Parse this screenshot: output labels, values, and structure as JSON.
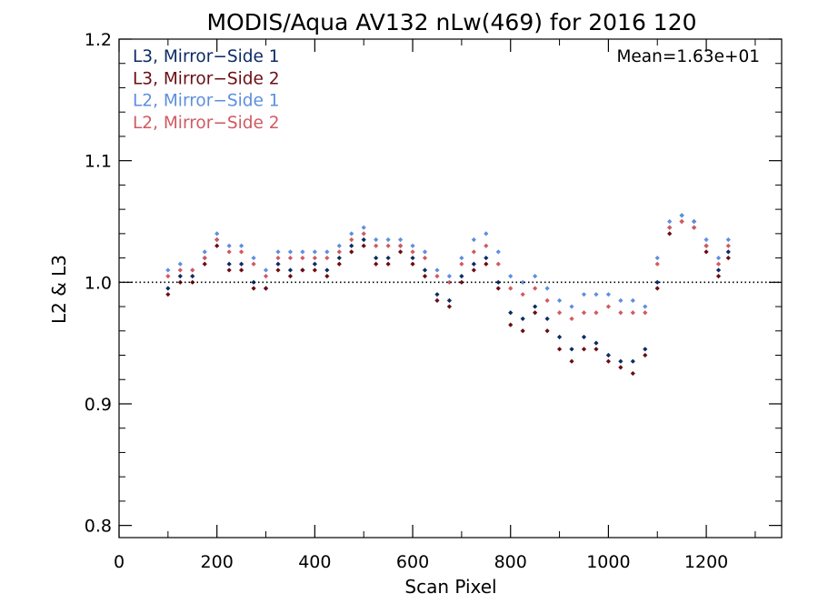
{
  "chart_data": {
    "type": "scatter",
    "title": "MODIS/Aqua AV132 nLw(469) for 2016 120",
    "xlabel": "Scan Pixel",
    "ylabel": "L2 & L3",
    "xlim": [
      0,
      1354
    ],
    "ylim": [
      0.79,
      1.2
    ],
    "xticks": [
      0,
      200,
      400,
      600,
      800,
      1000,
      1200
    ],
    "xtick_labels": [
      "0",
      "200",
      "400",
      "600",
      "800",
      "1000",
      "1200"
    ],
    "yticks": [
      0.8,
      0.9,
      1.0,
      1.1,
      1.2
    ],
    "ytick_labels": [
      "0.8",
      "0.9",
      "1.0",
      "1.1",
      "1.2"
    ],
    "reference_line": 1.0,
    "annotation": "Mean=1.63e+01",
    "legend_position": "top-left",
    "grid": false,
    "series": [
      {
        "name": "L3, Mirror−Side 1",
        "color": "#0b2c64",
        "x": [
          100,
          125,
          150,
          175,
          200,
          225,
          250,
          275,
          300,
          325,
          350,
          375,
          400,
          425,
          450,
          475,
          500,
          525,
          550,
          575,
          600,
          625,
          650,
          675,
          700,
          725,
          750,
          775,
          800,
          825,
          850,
          875,
          900,
          925,
          950,
          975,
          1000,
          1025,
          1050,
          1075,
          1100,
          1125,
          1150,
          1175,
          1200,
          1225,
          1245
        ],
        "y": [
          0.995,
          1.005,
          1.005,
          1.02,
          1.035,
          1.015,
          1.015,
          1.0,
          0.995,
          1.015,
          1.01,
          1.01,
          1.015,
          1.01,
          1.02,
          1.03,
          1.035,
          1.02,
          1.02,
          1.03,
          1.02,
          1.01,
          0.99,
          0.985,
          1.005,
          1.015,
          1.02,
          1.0,
          0.975,
          0.97,
          0.98,
          0.97,
          0.955,
          0.945,
          0.955,
          0.95,
          0.94,
          0.935,
          0.935,
          0.945,
          1.0,
          1.045,
          1.055,
          1.05,
          1.03,
          1.01,
          1.025
        ]
      },
      {
        "name": "L3, Mirror−Side 2",
        "color": "#6b0d14",
        "x": [
          100,
          125,
          150,
          175,
          200,
          225,
          250,
          275,
          300,
          325,
          350,
          375,
          400,
          425,
          450,
          475,
          500,
          525,
          550,
          575,
          600,
          625,
          650,
          675,
          700,
          725,
          750,
          775,
          800,
          825,
          850,
          875,
          900,
          925,
          950,
          975,
          1000,
          1025,
          1050,
          1075,
          1100,
          1125,
          1150,
          1175,
          1200,
          1225,
          1245
        ],
        "y": [
          0.99,
          1.0,
          1.0,
          1.015,
          1.03,
          1.01,
          1.01,
          0.995,
          0.995,
          1.01,
          1.005,
          1.01,
          1.01,
          1.005,
          1.015,
          1.025,
          1.03,
          1.015,
          1.015,
          1.025,
          1.015,
          1.005,
          0.985,
          0.98,
          1.0,
          1.01,
          1.015,
          0.995,
          0.965,
          0.96,
          0.975,
          0.96,
          0.945,
          0.935,
          0.945,
          0.945,
          0.935,
          0.93,
          0.925,
          0.94,
          0.995,
          1.04,
          1.05,
          1.045,
          1.025,
          1.005,
          1.02
        ]
      },
      {
        "name": "L2, Mirror−Side 1",
        "color": "#5e8ee0",
        "x": [
          100,
          125,
          150,
          175,
          200,
          225,
          250,
          275,
          300,
          325,
          350,
          375,
          400,
          425,
          450,
          475,
          500,
          525,
          550,
          575,
          600,
          625,
          650,
          675,
          700,
          725,
          750,
          775,
          800,
          825,
          850,
          875,
          900,
          925,
          950,
          975,
          1000,
          1025,
          1050,
          1075,
          1100,
          1125,
          1150,
          1175,
          1200,
          1225,
          1245
        ],
        "y": [
          1.01,
          1.015,
          1.01,
          1.025,
          1.04,
          1.03,
          1.03,
          1.02,
          1.01,
          1.025,
          1.025,
          1.025,
          1.025,
          1.025,
          1.03,
          1.04,
          1.045,
          1.035,
          1.035,
          1.035,
          1.03,
          1.025,
          1.01,
          1.005,
          1.02,
          1.035,
          1.04,
          1.025,
          1.005,
          1.0,
          1.005,
          0.995,
          0.985,
          0.98,
          0.99,
          0.99,
          0.99,
          0.985,
          0.985,
          0.98,
          1.02,
          1.05,
          1.055,
          1.05,
          1.035,
          1.02,
          1.035
        ]
      },
      {
        "name": "L2, Mirror−Side 2",
        "color": "#cf5a62",
        "x": [
          100,
          125,
          150,
          175,
          200,
          225,
          250,
          275,
          300,
          325,
          350,
          375,
          400,
          425,
          450,
          475,
          500,
          525,
          550,
          575,
          600,
          625,
          650,
          675,
          700,
          725,
          750,
          775,
          800,
          825,
          850,
          875,
          900,
          925,
          950,
          975,
          1000,
          1025,
          1050,
          1075,
          1100,
          1125,
          1150,
          1175,
          1200,
          1225,
          1245
        ],
        "y": [
          1.005,
          1.01,
          1.01,
          1.02,
          1.035,
          1.025,
          1.025,
          1.015,
          1.005,
          1.02,
          1.02,
          1.02,
          1.02,
          1.02,
          1.025,
          1.035,
          1.04,
          1.03,
          1.03,
          1.03,
          1.025,
          1.02,
          1.005,
          1.0,
          1.015,
          1.025,
          1.03,
          1.015,
          0.995,
          0.99,
          0.995,
          0.985,
          0.975,
          0.97,
          0.975,
          0.975,
          0.98,
          0.975,
          0.975,
          0.975,
          1.015,
          1.045,
          1.05,
          1.045,
          1.03,
          1.015,
          1.03
        ]
      }
    ]
  }
}
